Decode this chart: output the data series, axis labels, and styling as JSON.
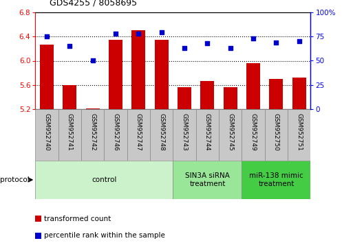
{
  "title": "GDS4255 / 8058695",
  "samples": [
    "GSM952740",
    "GSM952741",
    "GSM952742",
    "GSM952746",
    "GSM952747",
    "GSM952748",
    "GSM952743",
    "GSM952744",
    "GSM952745",
    "GSM952749",
    "GSM952750",
    "GSM952751"
  ],
  "bar_values": [
    6.27,
    5.6,
    5.22,
    6.35,
    6.5,
    6.35,
    5.57,
    5.67,
    5.57,
    5.96,
    5.7,
    5.72
  ],
  "dot_values": [
    75,
    65,
    50,
    78,
    78,
    79,
    63,
    68,
    63,
    73,
    69,
    70
  ],
  "bar_color": "#cc0000",
  "dot_color": "#0000cc",
  "ylim_left": [
    5.2,
    6.8
  ],
  "ylim_right": [
    0,
    100
  ],
  "yticks_left": [
    5.2,
    5.6,
    6.0,
    6.4,
    6.8
  ],
  "yticks_right": [
    0,
    25,
    50,
    75,
    100
  ],
  "groups": [
    {
      "label": "control",
      "start": 0,
      "end": 6,
      "color": "#ccf2cc"
    },
    {
      "label": "SIN3A siRNA\ntreatment",
      "start": 6,
      "end": 9,
      "color": "#99e699"
    },
    {
      "label": "miR-138 mimic\ntreatment",
      "start": 9,
      "end": 12,
      "color": "#44cc44"
    }
  ],
  "legend_bar_label": "transformed count",
  "legend_dot_label": "percentile rank within the sample",
  "protocol_label": "protocol",
  "sample_box_color": "#c8c8c8",
  "title_fontsize": 9,
  "tick_fontsize": 7.5,
  "label_fontsize": 7.5,
  "sample_fontsize": 6.5
}
